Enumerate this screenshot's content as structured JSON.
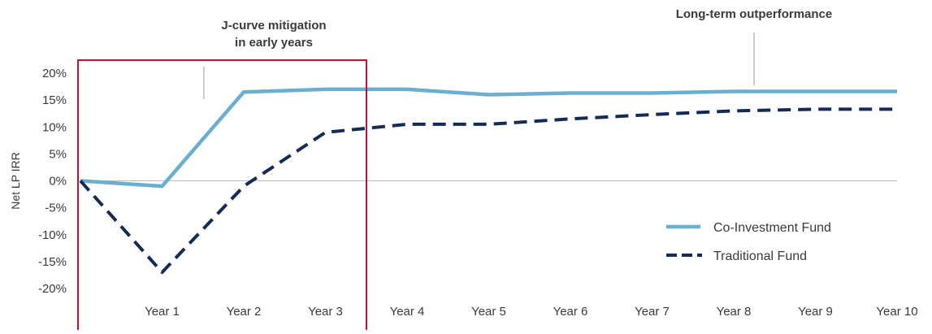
{
  "chart_data": {
    "type": "line",
    "categories": [
      "",
      "Year 1",
      "Year 2",
      "Year 3",
      "Year 4",
      "Year 5",
      "Year 6",
      "Year 7",
      "Year 8",
      "Year 9",
      "Year 10"
    ],
    "ylabel": "Net LP IRR",
    "ylim": [
      -20,
      20
    ],
    "yticks": [
      20,
      15,
      10,
      5,
      0,
      -5,
      -10,
      -15,
      -20
    ],
    "ytick_labels": [
      "20%",
      "15%",
      "10%",
      "5%",
      "0%",
      "-5%",
      "-10%",
      "-15%",
      "-20%"
    ],
    "grid": false,
    "legend_position": "bottom-right",
    "series": [
      {
        "name": "Co-Investment Fund",
        "style": "solid",
        "color": "#6aaed0",
        "values": [
          0,
          -1,
          16.5,
          17,
          17,
          16,
          16.3,
          16.3,
          16.6,
          16.6,
          16.6
        ]
      },
      {
        "name": "Traditional Fund",
        "style": "dashed",
        "color": "#132b55",
        "values": [
          0,
          -17,
          -1,
          9,
          10.5,
          10.5,
          11.5,
          12.3,
          13,
          13.3,
          13.3
        ]
      }
    ],
    "annotations": [
      {
        "lines": [
          "J-curve mitigation",
          "in early years"
        ]
      },
      {
        "lines": [
          "Long-term outperformance"
        ]
      }
    ],
    "highlight_box": {
      "color": "#c8102e",
      "span_categories": [
        "",
        "Year 3"
      ]
    }
  }
}
